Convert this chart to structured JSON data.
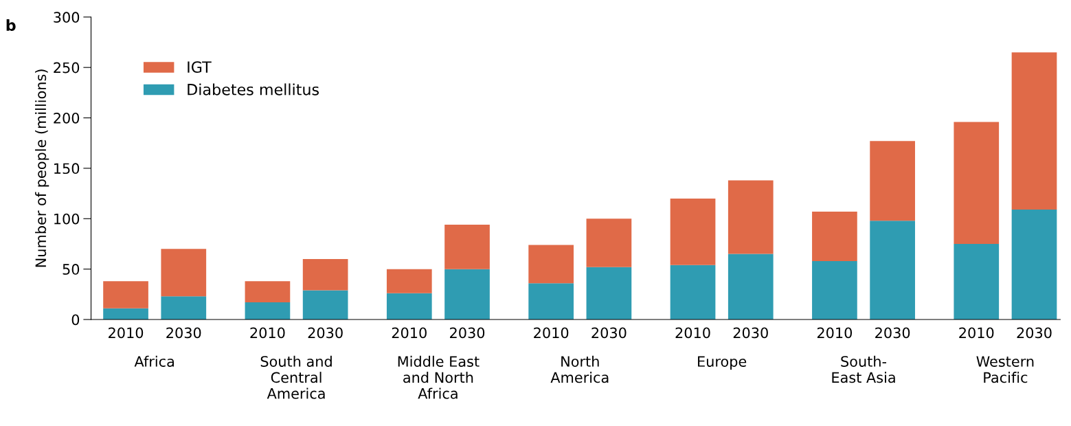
{
  "chart_data": {
    "type": "bar",
    "title": "b",
    "ylabel": "Number of people (millions)",
    "categories": [
      "2010",
      "2030",
      "2010",
      "2030",
      "2010",
      "2030",
      "2010",
      "2030",
      "2010",
      "2030",
      "2010",
      "2030",
      "2010",
      "2030"
    ],
    "stacked": true,
    "series": [
      {
        "name": "Diabetes mellitus",
        "color": "#2f9cb2",
        "values": [
          11,
          23,
          17,
          29,
          26,
          50,
          36,
          52,
          54,
          65,
          58,
          98,
          75,
          109
        ]
      },
      {
        "name": "IGT",
        "color": "#e06a48",
        "values": [
          27,
          47,
          21,
          31,
          24,
          44,
          38,
          48,
          66,
          73,
          49,
          79,
          121,
          156
        ]
      }
    ],
    "annotations": [
      "Africa",
      "South and\nCentral\nAmerica",
      "Middle East\nand North\nAfrica",
      "North\nAmerica",
      "Europe",
      "South-\nEast Asia",
      "Western\nPacific"
    ],
    "ylim": [
      0,
      300
    ],
    "yticks": [
      0,
      50,
      100,
      150,
      200,
      250,
      300
    ],
    "legend": "top left"
  }
}
